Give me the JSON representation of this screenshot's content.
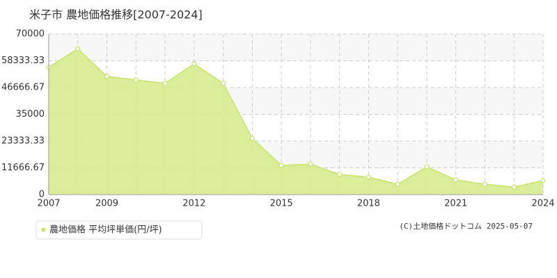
{
  "chart_data": {
    "type": "area",
    "title": "米子市 農地価格推移[2007-2024]",
    "x": [
      2007,
      2008,
      2009,
      2010,
      2011,
      2012,
      2013,
      2014,
      2015,
      2016,
      2017,
      2018,
      2019,
      2020,
      2021,
      2022,
      2023,
      2024
    ],
    "series": [
      {
        "name": "農地価格 平均坪単価(円/坪)",
        "color": "#c6e36b",
        "values": [
          55500,
          63600,
          51500,
          50000,
          48500,
          57000,
          48500,
          24500,
          12700,
          13300,
          8800,
          7600,
          4500,
          12100,
          6400,
          4500,
          3300,
          6100
        ]
      }
    ],
    "xlim": [
      2007,
      2024
    ],
    "xticks": [
      2007,
      2009,
      2012,
      2015,
      2018,
      2021,
      2024
    ],
    "ylim": [
      0,
      70000
    ],
    "yticks": [
      0,
      11666.67,
      23333.33,
      35000,
      46666.67,
      58333.33,
      70000
    ],
    "grid": true,
    "copyright": "(C)土地価格ドットコム 2025-05-07"
  }
}
